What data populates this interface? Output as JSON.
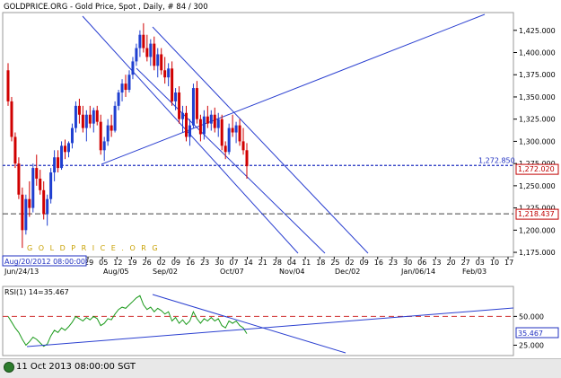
{
  "header": {
    "title": "GOLDPRICE.ORG - Gold Price, Spot , Daily, # 84 / 300"
  },
  "watermark": "G O L D P R I C E . O R G",
  "chart_data": [
    {
      "type": "candlestick",
      "title": "GOLDPRICE.ORG - Gold Price, Spot , Daily, # 84 / 300",
      "ylim": [
        1170,
        1445
      ],
      "y_ticks": [
        "1,425.000",
        "1,400.000",
        "1,375.000",
        "1,350.000",
        "1,325.000",
        "1,300.000",
        "1,275.000",
        "1,250.000",
        "1,225.000",
        "1,200.000",
        "1,175.000"
      ],
      "y_tick_values": [
        1425,
        1400,
        1375,
        1350,
        1325,
        1300,
        1275,
        1250,
        1225,
        1200,
        1175
      ],
      "x_ticks_top_row": [
        "29",
        "05",
        "12",
        "19",
        "26",
        "02",
        "09",
        "16",
        "23",
        "30",
        "07",
        "14",
        "21",
        "28",
        "04",
        "11",
        "18",
        "25",
        "02",
        "09",
        "16",
        "23",
        "30",
        "06",
        "13",
        "20",
        "27",
        "03",
        "10",
        "17"
      ],
      "x_ticks_bottom_row": [
        "Jun/24/13",
        "Aug/05",
        "Sep/02",
        "Oct/07",
        "Nov/04",
        "Dec/02",
        "Jan/06/14",
        "Feb/03"
      ],
      "cursor_label": "Aug/20/2012 08:00:00",
      "price_labels": [
        {
          "text": "1,272.850",
          "value": 1272.85,
          "color": "#2030c0"
        },
        {
          "text": "1,272.020",
          "value": 1272.02,
          "color": "#c00000"
        },
        {
          "text": "1,218.437",
          "value": 1218.437,
          "color": "#c00000"
        }
      ],
      "candles": [
        {
          "o": 1380,
          "h": 1388,
          "l": 1340,
          "c": 1345
        },
        {
          "o": 1345,
          "h": 1350,
          "l": 1300,
          "c": 1305
        },
        {
          "o": 1305,
          "h": 1310,
          "l": 1270,
          "c": 1275
        },
        {
          "o": 1275,
          "h": 1282,
          "l": 1235,
          "c": 1240
        },
        {
          "o": 1240,
          "h": 1248,
          "l": 1180,
          "c": 1200
        },
        {
          "o": 1200,
          "h": 1240,
          "l": 1195,
          "c": 1235
        },
        {
          "o": 1235,
          "h": 1255,
          "l": 1215,
          "c": 1225
        },
        {
          "o": 1225,
          "h": 1275,
          "l": 1220,
          "c": 1270
        },
        {
          "o": 1270,
          "h": 1285,
          "l": 1250,
          "c": 1258
        },
        {
          "o": 1258,
          "h": 1268,
          "l": 1240,
          "c": 1245
        },
        {
          "o": 1245,
          "h": 1255,
          "l": 1212,
          "c": 1218
        },
        {
          "o": 1218,
          "h": 1240,
          "l": 1205,
          "c": 1235
        },
        {
          "o": 1235,
          "h": 1270,
          "l": 1230,
          "c": 1265
        },
        {
          "o": 1265,
          "h": 1290,
          "l": 1255,
          "c": 1282
        },
        {
          "o": 1282,
          "h": 1290,
          "l": 1265,
          "c": 1270
        },
        {
          "o": 1270,
          "h": 1300,
          "l": 1268,
          "c": 1295
        },
        {
          "o": 1295,
          "h": 1302,
          "l": 1280,
          "c": 1288
        },
        {
          "o": 1288,
          "h": 1300,
          "l": 1282,
          "c": 1298
        },
        {
          "o": 1298,
          "h": 1320,
          "l": 1292,
          "c": 1315
        },
        {
          "o": 1315,
          "h": 1345,
          "l": 1310,
          "c": 1340
        },
        {
          "o": 1340,
          "h": 1348,
          "l": 1320,
          "c": 1330
        },
        {
          "o": 1330,
          "h": 1340,
          "l": 1310,
          "c": 1315
        },
        {
          "o": 1315,
          "h": 1335,
          "l": 1300,
          "c": 1330
        },
        {
          "o": 1330,
          "h": 1340,
          "l": 1315,
          "c": 1320
        },
        {
          "o": 1320,
          "h": 1338,
          "l": 1310,
          "c": 1335
        },
        {
          "o": 1335,
          "h": 1340,
          "l": 1318,
          "c": 1322
        },
        {
          "o": 1322,
          "h": 1330,
          "l": 1285,
          "c": 1290
        },
        {
          "o": 1290,
          "h": 1305,
          "l": 1278,
          "c": 1300
        },
        {
          "o": 1300,
          "h": 1325,
          "l": 1295,
          "c": 1318
        },
        {
          "o": 1318,
          "h": 1330,
          "l": 1305,
          "c": 1312
        },
        {
          "o": 1312,
          "h": 1345,
          "l": 1310,
          "c": 1340
        },
        {
          "o": 1340,
          "h": 1358,
          "l": 1335,
          "c": 1355
        },
        {
          "o": 1355,
          "h": 1370,
          "l": 1345,
          "c": 1365
        },
        {
          "o": 1365,
          "h": 1375,
          "l": 1350,
          "c": 1358
        },
        {
          "o": 1358,
          "h": 1380,
          "l": 1355,
          "c": 1375
        },
        {
          "o": 1375,
          "h": 1395,
          "l": 1370,
          "c": 1390
        },
        {
          "o": 1390,
          "h": 1410,
          "l": 1385,
          "c": 1405
        },
        {
          "o": 1405,
          "h": 1425,
          "l": 1395,
          "c": 1420
        },
        {
          "o": 1420,
          "h": 1433,
          "l": 1400,
          "c": 1405
        },
        {
          "o": 1405,
          "h": 1420,
          "l": 1390,
          "c": 1395
        },
        {
          "o": 1395,
          "h": 1415,
          "l": 1385,
          "c": 1410
        },
        {
          "o": 1410,
          "h": 1418,
          "l": 1380,
          "c": 1385
        },
        {
          "o": 1385,
          "h": 1405,
          "l": 1372,
          "c": 1398
        },
        {
          "o": 1398,
          "h": 1405,
          "l": 1375,
          "c": 1380
        },
        {
          "o": 1380,
          "h": 1395,
          "l": 1365,
          "c": 1372
        },
        {
          "o": 1372,
          "h": 1388,
          "l": 1362,
          "c": 1382
        },
        {
          "o": 1382,
          "h": 1390,
          "l": 1340,
          "c": 1345
        },
        {
          "o": 1345,
          "h": 1360,
          "l": 1335,
          "c": 1355
        },
        {
          "o": 1355,
          "h": 1362,
          "l": 1320,
          "c": 1325
        },
        {
          "o": 1325,
          "h": 1340,
          "l": 1310,
          "c": 1332
        },
        {
          "o": 1332,
          "h": 1340,
          "l": 1300,
          "c": 1305
        },
        {
          "o": 1305,
          "h": 1325,
          "l": 1295,
          "c": 1318
        },
        {
          "o": 1318,
          "h": 1365,
          "l": 1315,
          "c": 1360
        },
        {
          "o": 1360,
          "h": 1368,
          "l": 1320,
          "c": 1325
        },
        {
          "o": 1325,
          "h": 1330,
          "l": 1300,
          "c": 1308
        },
        {
          "o": 1308,
          "h": 1335,
          "l": 1302,
          "c": 1328
        },
        {
          "o": 1328,
          "h": 1340,
          "l": 1315,
          "c": 1320
        },
        {
          "o": 1320,
          "h": 1335,
          "l": 1312,
          "c": 1330
        },
        {
          "o": 1330,
          "h": 1338,
          "l": 1310,
          "c": 1315
        },
        {
          "o": 1315,
          "h": 1332,
          "l": 1305,
          "c": 1325
        },
        {
          "o": 1325,
          "h": 1330,
          "l": 1290,
          "c": 1295
        },
        {
          "o": 1295,
          "h": 1300,
          "l": 1280,
          "c": 1288
        },
        {
          "o": 1288,
          "h": 1320,
          "l": 1285,
          "c": 1315
        },
        {
          "o": 1315,
          "h": 1330,
          "l": 1305,
          "c": 1310
        },
        {
          "o": 1310,
          "h": 1322,
          "l": 1298,
          "c": 1318
        },
        {
          "o": 1318,
          "h": 1325,
          "l": 1295,
          "c": 1300
        },
        {
          "o": 1300,
          "h": 1315,
          "l": 1285,
          "c": 1290
        },
        {
          "o": 1290,
          "h": 1298,
          "l": 1258,
          "c": 1272
        }
      ]
    },
    {
      "type": "line",
      "title": "RSI(1) 14=35.467",
      "ylim": [
        16,
        76
      ],
      "y_ticks": [
        "50.000",
        "25.000"
      ],
      "y_tick_values": [
        50,
        25
      ],
      "reference_line": 50,
      "current_label": "35.467",
      "values": [
        50,
        45,
        40,
        36,
        30,
        25,
        28,
        32,
        30,
        27,
        24,
        26,
        33,
        38,
        36,
        40,
        38,
        41,
        45,
        50,
        48,
        46,
        49,
        47,
        50,
        48,
        42,
        44,
        48,
        47,
        52,
        56,
        58,
        57,
        60,
        63,
        66,
        68,
        60,
        56,
        58,
        54,
        57,
        55,
        52,
        54,
        46,
        49,
        44,
        47,
        43,
        46,
        54,
        48,
        44,
        48,
        46,
        49,
        46,
        48,
        42,
        40,
        46,
        44,
        46,
        42,
        40,
        35
      ]
    }
  ],
  "footer": {
    "datetime": "11 Oct 2013 08:00:00 SGT"
  }
}
